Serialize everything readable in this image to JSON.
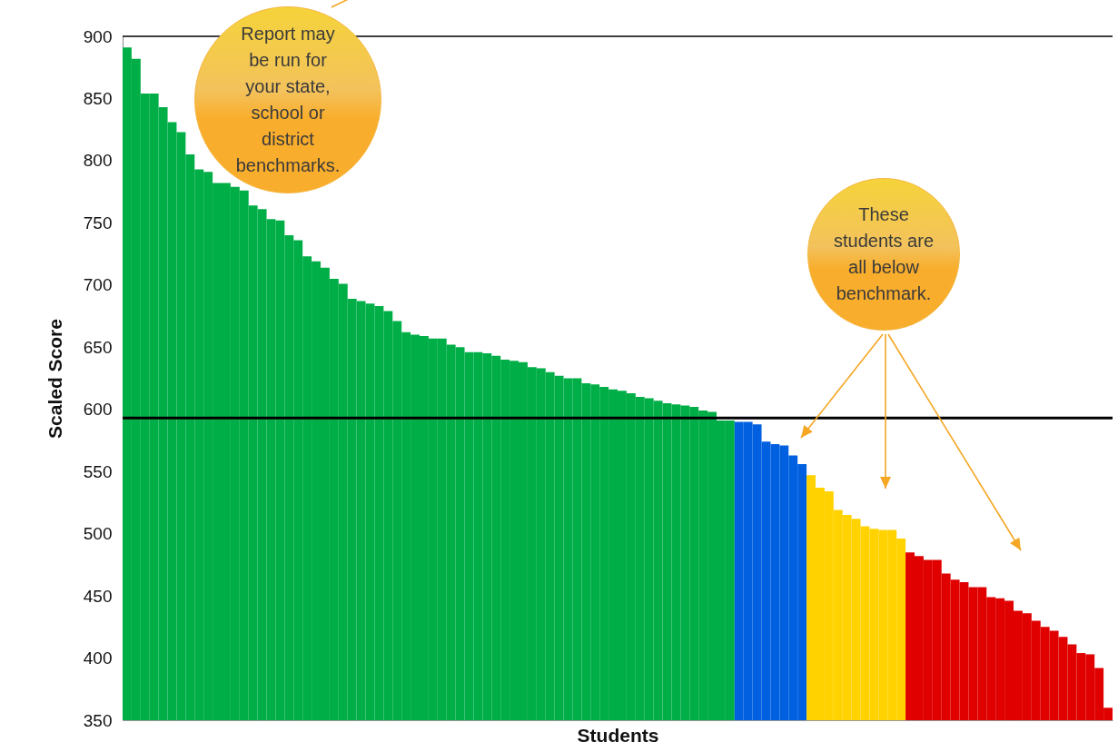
{
  "chart_data": {
    "type": "bar",
    "ylabel": "Scaled Score",
    "xlabel": "Students",
    "categories": [
      null,
      null,
      null,
      null,
      null,
      null,
      null,
      null,
      null,
      null,
      null,
      null,
      null,
      null,
      null,
      null,
      null,
      null,
      null,
      null,
      null,
      null,
      null,
      null,
      null,
      null,
      null,
      null,
      null,
      null,
      null,
      null,
      null,
      null,
      null,
      null,
      null,
      null,
      null,
      null,
      null,
      null,
      null,
      null,
      null,
      null,
      null,
      null,
      null,
      null,
      null,
      null,
      null,
      null,
      null,
      null,
      null,
      null,
      null,
      null,
      null,
      null,
      null,
      null,
      null,
      null,
      null,
      null,
      null,
      null,
      null,
      null,
      null,
      null,
      null,
      null,
      null,
      null,
      null,
      null,
      null,
      null,
      null,
      null,
      null,
      null,
      null,
      null,
      null,
      null,
      null,
      null,
      null,
      null,
      null,
      null,
      null,
      null,
      null,
      null,
      null,
      null,
      null,
      null,
      null,
      null,
      null,
      null,
      null,
      null
    ],
    "values": [
      891,
      882,
      854,
      854,
      843,
      831,
      823,
      805,
      793,
      791,
      782,
      782,
      779,
      776,
      764,
      761,
      753,
      752,
      740,
      736,
      723,
      719,
      714,
      705,
      701,
      689,
      687,
      685,
      683,
      679,
      671,
      662,
      660,
      659,
      657,
      657,
      652,
      650,
      646,
      646,
      645,
      643,
      640,
      639,
      638,
      634,
      633,
      630,
      627,
      625,
      625,
      621,
      620,
      618,
      616,
      615,
      613,
      610,
      609,
      607,
      605,
      604,
      603,
      602,
      599,
      598,
      591,
      591,
      590,
      590,
      588,
      574,
      572,
      571,
      563,
      556,
      547,
      537,
      534,
      519,
      515,
      512,
      506,
      504,
      503,
      503,
      496,
      485,
      482,
      479,
      479,
      468,
      463,
      461,
      457,
      457,
      449,
      448,
      446,
      438,
      436,
      430,
      425,
      422,
      417,
      411,
      404,
      403,
      392,
      360
    ],
    "colors": [
      "#00ae47",
      "#00ae47",
      "#00ae47",
      "#00ae47",
      "#00ae47",
      "#00ae47",
      "#00ae47",
      "#00ae47",
      "#00ae47",
      "#00ae47",
      "#00ae47",
      "#00ae47",
      "#00ae47",
      "#00ae47",
      "#00ae47",
      "#00ae47",
      "#00ae47",
      "#00ae47",
      "#00ae47",
      "#00ae47",
      "#00ae47",
      "#00ae47",
      "#00ae47",
      "#00ae47",
      "#00ae47",
      "#00ae47",
      "#00ae47",
      "#00ae47",
      "#00ae47",
      "#00ae47",
      "#00ae47",
      "#00ae47",
      "#00ae47",
      "#00ae47",
      "#00ae47",
      "#00ae47",
      "#00ae47",
      "#00ae47",
      "#00ae47",
      "#00ae47",
      "#00ae47",
      "#00ae47",
      "#00ae47",
      "#00ae47",
      "#00ae47",
      "#00ae47",
      "#00ae47",
      "#00ae47",
      "#00ae47",
      "#00ae47",
      "#00ae47",
      "#00ae47",
      "#00ae47",
      "#00ae47",
      "#00ae47",
      "#00ae47",
      "#00ae47",
      "#00ae47",
      "#00ae47",
      "#00ae47",
      "#00ae47",
      "#00ae47",
      "#00ae47",
      "#00ae47",
      "#00ae47",
      "#00ae47",
      "#00ae47",
      "#00ae47",
      "#0060e0",
      "#0060e0",
      "#0060e0",
      "#0060e0",
      "#0060e0",
      "#0060e0",
      "#0060e0",
      "#0060e0",
      "#ffd200",
      "#ffd200",
      "#ffd200",
      "#ffd200",
      "#ffd200",
      "#ffd200",
      "#ffd200",
      "#ffd200",
      "#ffd200",
      "#ffd200",
      "#ffd200",
      "#e00000",
      "#e00000",
      "#e00000",
      "#e00000",
      "#e00000",
      "#e00000",
      "#e00000",
      "#e00000",
      "#e00000",
      "#e00000",
      "#e00000",
      "#e00000",
      "#e00000",
      "#e00000",
      "#e00000",
      "#e00000",
      "#e00000",
      "#e00000",
      "#e00000",
      "#e00000",
      "#e00000",
      "#e00000",
      "#e00000"
    ],
    "ylim": [
      350,
      900
    ],
    "yticks": [
      350,
      400,
      450,
      500,
      550,
      600,
      650,
      700,
      750,
      800,
      850,
      900
    ],
    "tick_labels": "y",
    "ref_lines": [
      {
        "axis": "y",
        "value": 593,
        "color": "#000000"
      },
      {
        "axis": "y",
        "value": 900,
        "color": "#000000"
      }
    ],
    "annotations": [
      "Report may be run for your state, school or district benchmarks.",
      "These students are all below benchmark."
    ]
  }
}
